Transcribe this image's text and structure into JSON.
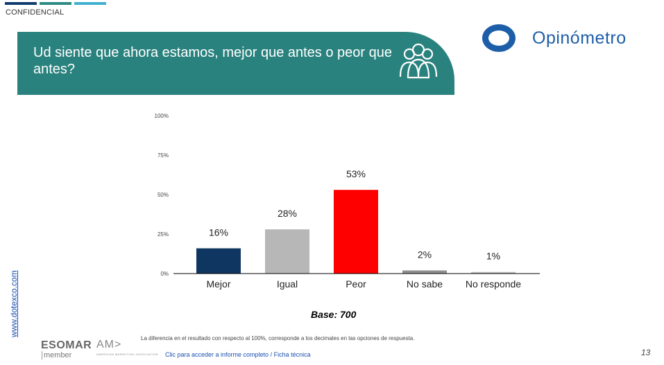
{
  "header": {
    "confidential_label": "CONFIDENCIAL"
  },
  "banner": {
    "question": "Ud siente que ahora estamos, mejor que antes o peor que antes?",
    "icon": "people-group-icon"
  },
  "brand": {
    "name": "Opinómetro",
    "color": "#1d5ea8"
  },
  "side_link": "www.dotexco.com",
  "chart_data": {
    "type": "bar",
    "categories": [
      "Mejor",
      "Igual",
      "Peor",
      "No sabe",
      "No responde"
    ],
    "values": [
      16,
      28,
      53,
      2,
      1
    ],
    "data_labels": [
      "16%",
      "28%",
      "53%",
      "2%",
      "1%"
    ],
    "colors": [
      "#0f3660",
      "#b7b7b7",
      "#ff0000",
      "#8f8f8f",
      "#bdbdbd"
    ],
    "yticks": [
      "0%",
      "25%",
      "50%",
      "75%",
      "100%"
    ],
    "ylim": [
      0,
      100
    ],
    "grid": false
  },
  "base_label": "Base: 700",
  "footnote": "La diferencia en el resultado con respecto al 100%, corresponde a los decimales en las opciones de respuesta.",
  "footer": {
    "esomar": "ESOMAR",
    "esomar_member": "member",
    "ama_mark": "AM>",
    "ama_text": "AMERICAN MARKETING ASSOCIATION",
    "report_link": "Clic para acceder a informe completo / Ficha técnica",
    "page_number": "13"
  }
}
